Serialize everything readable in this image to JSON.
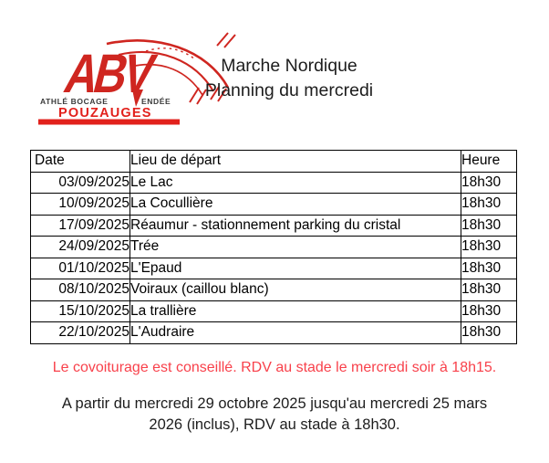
{
  "logo": {
    "abv": "ABV",
    "subtitle_left": "ATHLÉ BOCAGE",
    "subtitle_right": "ENDÉE",
    "city": "POUZAUGES"
  },
  "title": {
    "line1": "Marche Nordique",
    "line2": "Planning du mercredi"
  },
  "table": {
    "headers": [
      "Date",
      "Lieu de départ",
      "Heure"
    ],
    "rows": [
      [
        "03/09/2025",
        "Le Lac",
        "18h30"
      ],
      [
        "10/09/2025",
        "La Cocullière",
        "18h30"
      ],
      [
        "17/09/2025",
        "Réaumur - stationnement parking du cristal",
        "18h30"
      ],
      [
        "24/09/2025",
        "Trée",
        "18h30"
      ],
      [
        "01/10/2025",
        "L'Epaud",
        "18h30"
      ],
      [
        "08/10/2025",
        "Voiraux (caillou blanc)",
        "18h30"
      ],
      [
        "15/10/2025",
        "La trallière",
        "18h30"
      ],
      [
        "22/10/2025",
        "L'Audraire",
        "18h30"
      ]
    ]
  },
  "notes": {
    "carpool": "Le covoiturage est conseillé. RDV au stade le mercredi soir à 18h15.",
    "winter_line1": "A partir du mercredi 29 octobre 2025 jusqu'au mercredi 25 mars",
    "winter_line2": "2026 (inclus), RDV au stade à 18h30."
  },
  "colors": {
    "logo_red": "#cf2620",
    "logo_bright_red": "#e2211c",
    "note_red": "#f8414b",
    "text": "#1d1d1d"
  }
}
